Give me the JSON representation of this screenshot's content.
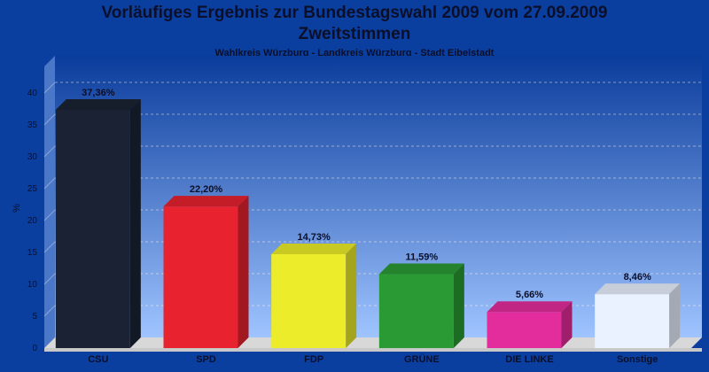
{
  "title_line1": "Vorläufiges Ergebnis zur Bundestagswahl 2009 vom 27.09.2009",
  "title_line2": "Zweitstimmen",
  "subtitle": "Wahlkreis Würzburg - Landkreis Würzburg - Stadt Eibelstadt",
  "chart_data": {
    "type": "bar",
    "categories": [
      "CSU",
      "SPD",
      "FDP",
      "GRÜNE",
      "DIE LINKE",
      "Sonstige"
    ],
    "values": [
      37.36,
      22.2,
      14.73,
      11.59,
      5.66,
      8.46
    ],
    "value_labels": [
      "37,36%",
      "22,20%",
      "14,73%",
      "11,59%",
      "5,66%",
      "8,46%"
    ],
    "colors": [
      "#1a2233",
      "#e8222e",
      "#ecec2a",
      "#2a9a34",
      "#e42d9c",
      "#eaf1ff"
    ],
    "ylabel": "%",
    "ylim": [
      0,
      40
    ],
    "yticks": [
      0,
      5,
      10,
      15,
      20,
      25,
      30,
      35,
      40
    ],
    "grid": true,
    "legend": "none"
  }
}
